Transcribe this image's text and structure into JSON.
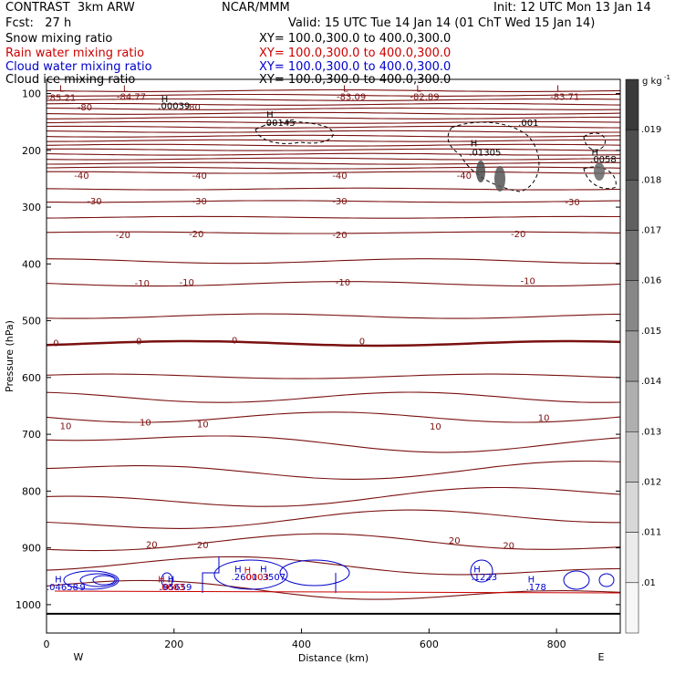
{
  "header": {
    "title": "CONTRAST  3km ARW",
    "org": "NCAR/MMM",
    "init": "Init: 12 UTC Mon 13 Jan 14",
    "fcst": "Fcst:   27 h",
    "valid": "Valid: 15 UTC Tue 14 Jan 14 (01 ChT Wed 15 Jan 14)",
    "fields": [
      {
        "label": "Snow mixing ratio",
        "xy": "XY= 100.0,300.0 to 400.0,300.0",
        "color": "#000000"
      },
      {
        "label": "Rain water mixing ratio",
        "xy": "XY= 100.0,300.0 to 400.0,300.0",
        "color": "#cc0000"
      },
      {
        "label": "Cloud water mixing ratio",
        "xy": "XY= 100.0,300.0 to 400.0,300.0",
        "color": "#0000cc"
      },
      {
        "label": "Cloud ice mixing ratio",
        "xy": "XY= 100.0,300.0 to 400.0,300.0",
        "color": "#000000"
      }
    ]
  },
  "chart_data": {
    "type": "contour",
    "xlabel": "Distance (km)",
    "ylabel": "Pressure (hPa)",
    "xlim": [
      0,
      900
    ],
    "ylim": [
      1050,
      75
    ],
    "x_ticks": [
      0,
      200,
      400,
      600,
      800
    ],
    "y_ticks": [
      100,
      200,
      300,
      400,
      500,
      600,
      700,
      800,
      900,
      1000
    ],
    "x_end_labels": [
      "W",
      "E"
    ],
    "colorbar": {
      "unit": "g kg",
      "unit_exp": "-1",
      "ticks": [
        ".019",
        ".018",
        ".017",
        ".016",
        ".015",
        ".014",
        ".013",
        ".012",
        ".011",
        ".01"
      ],
      "colors": [
        "#3a3a3a",
        "#4d4d4d",
        "#606060",
        "#737373",
        "#878787",
        "#9b9b9b",
        "#afafaf",
        "#c3c3c3",
        "#d7d7d7",
        "#ebebeb",
        "#f7f7f7"
      ]
    },
    "temperature_contours": [
      {
        "label": "-80",
        "p": 125
      },
      {
        "label": "-40",
        "p": 245
      },
      {
        "label": "-30",
        "p": 290
      },
      {
        "label": "-20",
        "p": 345
      },
      {
        "label": "-10",
        "p": 435
      },
      {
        "label": "0",
        "p": 540
      },
      {
        "label": "10",
        "p": 670
      },
      {
        "label": "20",
        "p": 895
      }
    ],
    "temp_labels": [
      {
        "text": "-80",
        "x": 60,
        "p": 125
      },
      {
        "text": "-80",
        "x": 230,
        "p": 125
      },
      {
        "text": "-40",
        "x": 55,
        "p": 245
      },
      {
        "text": "-40",
        "x": 240,
        "p": 245
      },
      {
        "text": "-40",
        "x": 460,
        "p": 245
      },
      {
        "text": "-40",
        "x": 655,
        "p": 245
      },
      {
        "text": "-30",
        "x": 75,
        "p": 290
      },
      {
        "text": "-30",
        "x": 240,
        "p": 290
      },
      {
        "text": "-30",
        "x": 460,
        "p": 290
      },
      {
        "text": "-30",
        "x": 825,
        "p": 292
      },
      {
        "text": "-20",
        "x": 120,
        "p": 350
      },
      {
        "text": "-20",
        "x": 235,
        "p": 348
      },
      {
        "text": "-20",
        "x": 460,
        "p": 350
      },
      {
        "text": "-20",
        "x": 740,
        "p": 348
      },
      {
        "text": "-10",
        "x": 150,
        "p": 435
      },
      {
        "text": "-10",
        "x": 220,
        "p": 433
      },
      {
        "text": "-10",
        "x": 465,
        "p": 433
      },
      {
        "text": "-10",
        "x": 755,
        "p": 431
      },
      {
        "text": "0",
        "x": 15,
        "p": 540
      },
      {
        "text": "0",
        "x": 145,
        "p": 537
      },
      {
        "text": "0",
        "x": 295,
        "p": 535
      },
      {
        "text": "0",
        "x": 495,
        "p": 537
      },
      {
        "text": "10",
        "x": 30,
        "p": 686
      },
      {
        "text": "10",
        "x": 155,
        "p": 680
      },
      {
        "text": "10",
        "x": 245,
        "p": 683
      },
      {
        "text": "10",
        "x": 610,
        "p": 687
      },
      {
        "text": "10",
        "x": 780,
        "p": 672
      },
      {
        "text": "20",
        "x": 165,
        "p": 895
      },
      {
        "text": "20",
        "x": 245,
        "p": 896
      },
      {
        "text": "20",
        "x": 640,
        "p": 888
      },
      {
        "text": "20",
        "x": 725,
        "p": 897
      }
    ],
    "extrema": [
      {
        "text": "L",
        "x": 20,
        "p": 92,
        "color": "#7a1010"
      },
      {
        "text": "-85.21",
        "x": 0,
        "p": 108,
        "color": "#7a1010"
      },
      {
        "text": "L",
        "x": 120,
        "p": 92,
        "color": "#7a1010"
      },
      {
        "text": "-84.77",
        "x": 110,
        "p": 106,
        "color": "#7a1010"
      },
      {
        "text": "L",
        "x": 465,
        "p": 92,
        "color": "#7a1010"
      },
      {
        "text": "-83.09",
        "x": 455,
        "p": 106,
        "color": "#7a1010"
      },
      {
        "text": "L",
        "x": 580,
        "p": 92,
        "color": "#7a1010"
      },
      {
        "text": "-82.89",
        "x": 570,
        "p": 106,
        "color": "#7a1010"
      },
      {
        "text": "L",
        "x": 800,
        "p": 92,
        "color": "#7a1010"
      },
      {
        "text": "-83.71",
        "x": 790,
        "p": 106,
        "color": "#7a1010"
      },
      {
        "text": "H",
        "x": 180,
        "p": 110,
        "color": "#000000"
      },
      {
        "text": ".00039",
        "x": 175,
        "p": 122,
        "color": "#000000"
      },
      {
        "text": "H",
        "x": 345,
        "p": 138,
        "color": "#000000"
      },
      {
        "text": ".00145",
        "x": 340,
        "p": 152,
        "color": "#000000"
      },
      {
        "text": ".001",
        "x": 740,
        "p": 152,
        "color": "#000000"
      },
      {
        "text": "H",
        "x": 665,
        "p": 188,
        "color": "#000000"
      },
      {
        "text": ".01305",
        "x": 663,
        "p": 204,
        "color": "#000000"
      },
      {
        "text": "H",
        "x": 855,
        "p": 204,
        "color": "#000000"
      },
      {
        "text": ".0058",
        "x": 853,
        "p": 216,
        "color": "#000000"
      },
      {
        "text": "H",
        "x": 13,
        "p": 956,
        "color": "#0000cc"
      },
      {
        "text": ".04658",
        "x": 0,
        "p": 970,
        "color": "#0000cc"
      },
      {
        "text": "9",
        "x": 52,
        "p": 970,
        "color": "#0000cc"
      },
      {
        "text": "H",
        "x": 190,
        "p": 956,
        "color": "#0000cc"
      },
      {
        "text": ".05659",
        "x": 178,
        "p": 970,
        "color": "#0000cc"
      },
      {
        "text": "H",
        "x": 295,
        "p": 938,
        "color": "#0000cc"
      },
      {
        "text": ".2601",
        "x": 290,
        "p": 952,
        "color": "#0000cc"
      },
      {
        "text": "H",
        "x": 335,
        "p": 938,
        "color": "#0000cc"
      },
      {
        "text": ".3507",
        "x": 334,
        "p": 952,
        "color": "#0000cc"
      },
      {
        "text": "H",
        "x": 670,
        "p": 938,
        "color": "#0000cc"
      },
      {
        "text": ".1223",
        "x": 666,
        "p": 952,
        "color": "#0000cc"
      },
      {
        "text": "H",
        "x": 755,
        "p": 956,
        "color": "#0000cc"
      },
      {
        "text": ".178",
        "x": 752,
        "p": 970,
        "color": "#0000cc"
      },
      {
        "text": "H",
        "x": 175,
        "p": 956,
        "color": "#cc0000"
      },
      {
        "text": ".0003",
        "x": 176,
        "p": 970,
        "color": "#cc0000"
      },
      {
        "text": "H",
        "x": 310,
        "p": 940,
        "color": "#cc0000"
      },
      {
        "text": ".0003",
        "x": 308,
        "p": 952,
        "color": "#cc0000"
      }
    ]
  }
}
